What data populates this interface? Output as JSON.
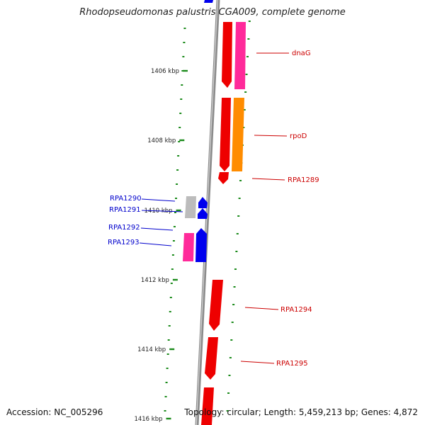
{
  "title": "Rhodopseudomonas palustris CGA009, complete genome",
  "footer": {
    "accession": "Accession: NC_005296",
    "topology": "Topology: circular; Length: 5,459,213 bp; Genes: 4,872"
  },
  "colors": {
    "background": "#ffffff",
    "backbone": "#8c8c8c",
    "tick": "#1a8a1a",
    "forward_gene": "#ee0000",
    "reverse_gene": "#0000ee",
    "pink_gene": "#ff2a9a",
    "orange_gene": "#ff8c00",
    "grey_gene": "#bcbcbc",
    "forward_label": "#cc0000",
    "reverse_label": "#0000cc"
  },
  "ticks": [
    "1406 kbp",
    "1408 kbp",
    "1410 kbp",
    "1412 kbp",
    "1414 kbp",
    "1416 kbp"
  ],
  "genes": [
    {
      "name": "dnaG",
      "strand": "forward"
    },
    {
      "name": "rpoD",
      "strand": "forward"
    },
    {
      "name": "RPA1289",
      "strand": "forward"
    },
    {
      "name": "RPA1290",
      "strand": "reverse"
    },
    {
      "name": "RPA1291",
      "strand": "reverse"
    },
    {
      "name": "RPA1292",
      "strand": "reverse"
    },
    {
      "name": "RPA1293",
      "strand": "reverse"
    },
    {
      "name": "RPA1294",
      "strand": "forward"
    },
    {
      "name": "RPA1295",
      "strand": "forward"
    }
  ]
}
